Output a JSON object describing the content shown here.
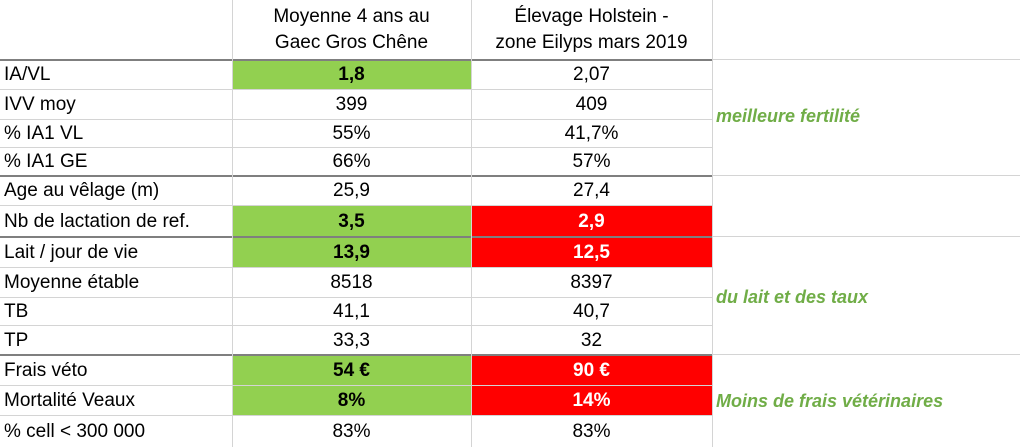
{
  "headers": {
    "col1": [
      "Moyenne 4 ans au",
      "Gaec Gros Chêne"
    ],
    "col2": [
      "Élevage Holstein -",
      "zone Eilyps mars 2019"
    ]
  },
  "rows": [
    {
      "label": "IA/VL",
      "v1": "1,8",
      "v2": "2,07",
      "v1_style": "green",
      "v2_style": ""
    },
    {
      "label": "IVV moy",
      "v1": "399",
      "v2": "409",
      "v1_style": "",
      "v2_style": ""
    },
    {
      "label": "% IA1 VL",
      "v1": "55%",
      "v2": "41,7%",
      "v1_style": "",
      "v2_style": ""
    },
    {
      "label": "% IA1 GE",
      "v1": "66%",
      "v2": "57%",
      "v1_style": "",
      "v2_style": ""
    },
    {
      "label": "Age au vêlage (m)",
      "v1": "25,9",
      "v2": "27,4",
      "v1_style": "",
      "v2_style": ""
    },
    {
      "label": "Nb de lactation de ref.",
      "v1": "3,5",
      "v2": "2,9",
      "v1_style": "green",
      "v2_style": "red"
    },
    {
      "label": "Lait / jour de vie",
      "v1": "13,9",
      "v2": "12,5",
      "v1_style": "green",
      "v2_style": "red"
    },
    {
      "label": "Moyenne étable",
      "v1": "8518",
      "v2": "8397",
      "v1_style": "",
      "v2_style": ""
    },
    {
      "label": "TB",
      "v1": "41,1",
      "v2": "40,7",
      "v1_style": "",
      "v2_style": ""
    },
    {
      "label": "TP",
      "v1": "33,3",
      "v2": "32",
      "v1_style": "",
      "v2_style": ""
    },
    {
      "label": "Frais véto",
      "v1": "54 €",
      "v2": "90 €",
      "v1_style": "green",
      "v2_style": "red"
    },
    {
      "label": "Mortalité Veaux",
      "v1": "8%",
      "v2": "14%",
      "v1_style": "green",
      "v2_style": "red"
    },
    {
      "label": "% cell < 300 000",
      "v1": "83%",
      "v2": "83%",
      "v1_style": "",
      "v2_style": ""
    }
  ],
  "notes": {
    "fertility": "meilleure fertilité",
    "milk": "du lait et des taux",
    "vet": "Moins de frais vétérinaires"
  },
  "colors": {
    "good": "#92d050",
    "bad": "#ff0000",
    "note": "#70ad47"
  }
}
